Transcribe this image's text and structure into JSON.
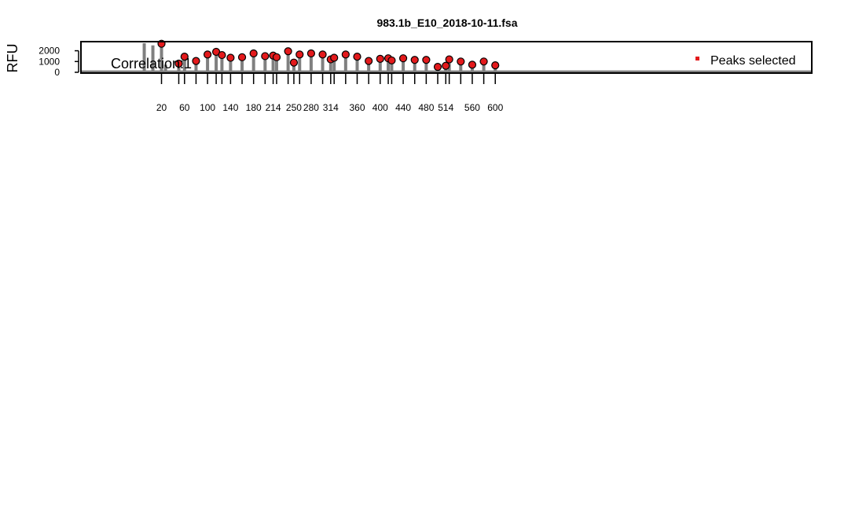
{
  "chart_data": {
    "type": "bar",
    "title": "983.1b_E10_2018-10-11.fsa",
    "xlabel": "",
    "ylabel": "RFU",
    "ylim": [
      0,
      2700
    ],
    "xlim": [
      -120,
      1150
    ],
    "grid": false,
    "legend_position": "top-right",
    "annotation": "Correlation:1",
    "legend": {
      "label": "Peaks selected",
      "marker_color": "#e31a1c"
    },
    "y_ticks": [
      0,
      1000,
      2000
    ],
    "x_ticks": [
      {
        "x": 20,
        "label": "20"
      },
      {
        "x": 50,
        "label": ""
      },
      {
        "x": 60,
        "label": "60"
      },
      {
        "x": 80,
        "label": ""
      },
      {
        "x": 100,
        "label": "100"
      },
      {
        "x": 115,
        "label": ""
      },
      {
        "x": 125,
        "label": ""
      },
      {
        "x": 140,
        "label": "140"
      },
      {
        "x": 160,
        "label": ""
      },
      {
        "x": 180,
        "label": "180"
      },
      {
        "x": 200,
        "label": ""
      },
      {
        "x": 214,
        "label": "214"
      },
      {
        "x": 220,
        "label": ""
      },
      {
        "x": 240,
        "label": ""
      },
      {
        "x": 250,
        "label": "250"
      },
      {
        "x": 260,
        "label": ""
      },
      {
        "x": 280,
        "label": "280"
      },
      {
        "x": 300,
        "label": ""
      },
      {
        "x": 314,
        "label": "314"
      },
      {
        "x": 320,
        "label": ""
      },
      {
        "x": 340,
        "label": ""
      },
      {
        "x": 360,
        "label": "360"
      },
      {
        "x": 380,
        "label": ""
      },
      {
        "x": 400,
        "label": "400"
      },
      {
        "x": 414,
        "label": ""
      },
      {
        "x": 420,
        "label": ""
      },
      {
        "x": 440,
        "label": "440"
      },
      {
        "x": 460,
        "label": ""
      },
      {
        "x": 480,
        "label": "480"
      },
      {
        "x": 500,
        "label": ""
      },
      {
        "x": 514,
        "label": "514"
      },
      {
        "x": 520,
        "label": ""
      },
      {
        "x": 540,
        "label": ""
      },
      {
        "x": 560,
        "label": "560"
      },
      {
        "x": 580,
        "label": ""
      },
      {
        "x": 600,
        "label": "600"
      }
    ],
    "baseline": {
      "x_start": -120,
      "x_end": 1150,
      "value": 60
    },
    "series": [
      {
        "kind": "stem",
        "color": "#808080",
        "x": [
          -10,
          5,
          20,
          27,
          50,
          60,
          80,
          100,
          115,
          125,
          140,
          160,
          180,
          200,
          214,
          220,
          240,
          250,
          260,
          280,
          300,
          314,
          320,
          340,
          360,
          380,
          400,
          414,
          420,
          440,
          460,
          480,
          500,
          514,
          520,
          540,
          560,
          580,
          600
        ],
        "values": [
          2700,
          2500,
          2650,
          700,
          800,
          1450,
          1050,
          1650,
          1900,
          1600,
          1350,
          1400,
          1750,
          1500,
          1550,
          1400,
          1950,
          900,
          1650,
          1750,
          1650,
          1200,
          1350,
          1650,
          1450,
          1050,
          1250,
          1300,
          1100,
          1300,
          1150,
          1150,
          500,
          600,
          1200,
          1000,
          700,
          1000,
          650
        ]
      },
      {
        "kind": "points",
        "color": "#e31a1c",
        "x": [
          20,
          50,
          60,
          80,
          100,
          115,
          125,
          140,
          160,
          180,
          200,
          214,
          220,
          240,
          250,
          260,
          280,
          300,
          314,
          320,
          340,
          360,
          380,
          400,
          414,
          420,
          440,
          460,
          480,
          500,
          514,
          520,
          540,
          560,
          580,
          600
        ],
        "values": [
          2650,
          800,
          1450,
          1050,
          1650,
          1900,
          1600,
          1350,
          1400,
          1750,
          1500,
          1550,
          1400,
          1950,
          900,
          1650,
          1750,
          1650,
          1200,
          1350,
          1650,
          1450,
          1050,
          1250,
          1300,
          1100,
          1300,
          1150,
          1150,
          500,
          600,
          1200,
          1000,
          700,
          1000,
          650
        ]
      }
    ]
  }
}
